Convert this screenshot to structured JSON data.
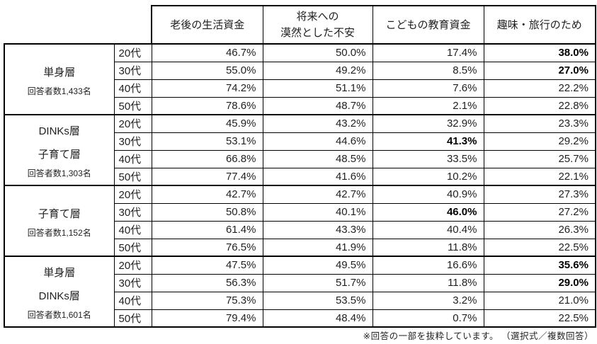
{
  "chart_data": {
    "type": "table",
    "title": "",
    "column_headers": [
      {
        "lines": [
          "老後の生活資金"
        ]
      },
      {
        "lines": [
          "将来への",
          "漠然とした不安"
        ]
      },
      {
        "lines": [
          "こどもの教育資金"
        ]
      },
      {
        "lines": [
          "趣味・旅行のため"
        ]
      }
    ],
    "age_column_values": [
      "20代",
      "30代",
      "40代",
      "50代"
    ],
    "groups": [
      {
        "label_lines": [
          "単身層"
        ],
        "respondents": "回答者数1,433名",
        "rows": [
          {
            "age": "20代",
            "values": [
              "46.7%",
              "50.0%",
              "17.4%",
              "38.0%"
            ],
            "bold": [
              3
            ]
          },
          {
            "age": "30代",
            "values": [
              "55.0%",
              "49.2%",
              "8.5%",
              "27.0%"
            ],
            "bold": [
              3
            ]
          },
          {
            "age": "40代",
            "values": [
              "74.2%",
              "51.1%",
              "7.6%",
              "22.2%"
            ],
            "bold": []
          },
          {
            "age": "50代",
            "values": [
              "78.6%",
              "48.7%",
              "2.1%",
              "22.8%"
            ],
            "bold": []
          }
        ]
      },
      {
        "label_lines": [
          "DINKs層",
          "子育て層"
        ],
        "respondents": "回答者数1,303名",
        "rows": [
          {
            "age": "20代",
            "values": [
              "45.9%",
              "43.2%",
              "32.9%",
              "23.3%"
            ],
            "bold": []
          },
          {
            "age": "30代",
            "values": [
              "53.1%",
              "44.6%",
              "41.3%",
              "29.2%"
            ],
            "bold": [
              2
            ]
          },
          {
            "age": "40代",
            "values": [
              "66.8%",
              "48.5%",
              "33.5%",
              "25.7%"
            ],
            "bold": []
          },
          {
            "age": "50代",
            "values": [
              "77.4%",
              "41.6%",
              "10.2%",
              "22.1%"
            ],
            "bold": []
          }
        ]
      },
      {
        "label_lines": [
          "子育て層"
        ],
        "respondents": "回答者数1,152名",
        "rows": [
          {
            "age": "20代",
            "values": [
              "42.7%",
              "42.7%",
              "40.9%",
              "27.3%"
            ],
            "bold": []
          },
          {
            "age": "30代",
            "values": [
              "50.8%",
              "40.1%",
              "46.0%",
              "27.2%"
            ],
            "bold": [
              2
            ]
          },
          {
            "age": "40代",
            "values": [
              "61.4%",
              "43.3%",
              "40.4%",
              "26.3%"
            ],
            "bold": []
          },
          {
            "age": "50代",
            "values": [
              "76.5%",
              "41.9%",
              "11.8%",
              "22.5%"
            ],
            "bold": []
          }
        ]
      },
      {
        "label_lines": [
          "単身層",
          "DINKs層"
        ],
        "respondents": "回答者数1,601名",
        "rows": [
          {
            "age": "20代",
            "values": [
              "47.5%",
              "49.5%",
              "16.6%",
              "35.6%"
            ],
            "bold": [
              3
            ]
          },
          {
            "age": "30代",
            "values": [
              "56.3%",
              "51.7%",
              "11.8%",
              "29.0%"
            ],
            "bold": [
              3
            ]
          },
          {
            "age": "40代",
            "values": [
              "75.3%",
              "53.5%",
              "3.2%",
              "21.0%"
            ],
            "bold": []
          },
          {
            "age": "50代",
            "values": [
              "79.4%",
              "48.4%",
              "0.7%",
              "22.5%"
            ],
            "bold": []
          }
        ]
      }
    ]
  },
  "footnote": "※回答の一部を抜粋しています。 （選択式／複数回答）",
  "colors": {
    "border": "#000000",
    "text": "#1f1f1f",
    "background": "#ffffff"
  }
}
